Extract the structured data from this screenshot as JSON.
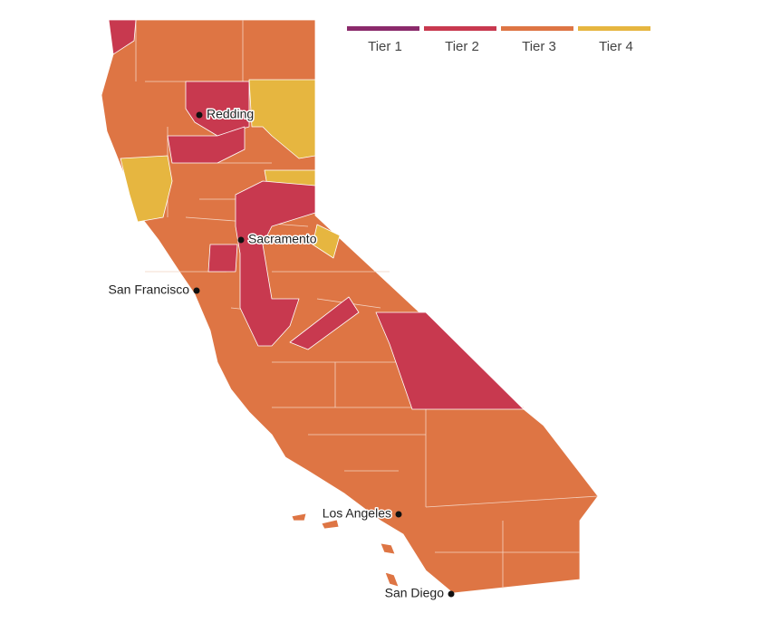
{
  "legend": [
    {
      "label": "Tier 1",
      "color": "#8b2a6b"
    },
    {
      "label": "Tier 2",
      "color": "#c8394f"
    },
    {
      "label": "Tier 3",
      "color": "#de7544"
    },
    {
      "label": "Tier 4",
      "color": "#e6b640"
    }
  ],
  "cities": [
    {
      "label": "Redding"
    },
    {
      "label": "Sacramento"
    },
    {
      "label": "San Francisco"
    },
    {
      "label": "Los Angeles"
    },
    {
      "label": "San Diego"
    }
  ]
}
